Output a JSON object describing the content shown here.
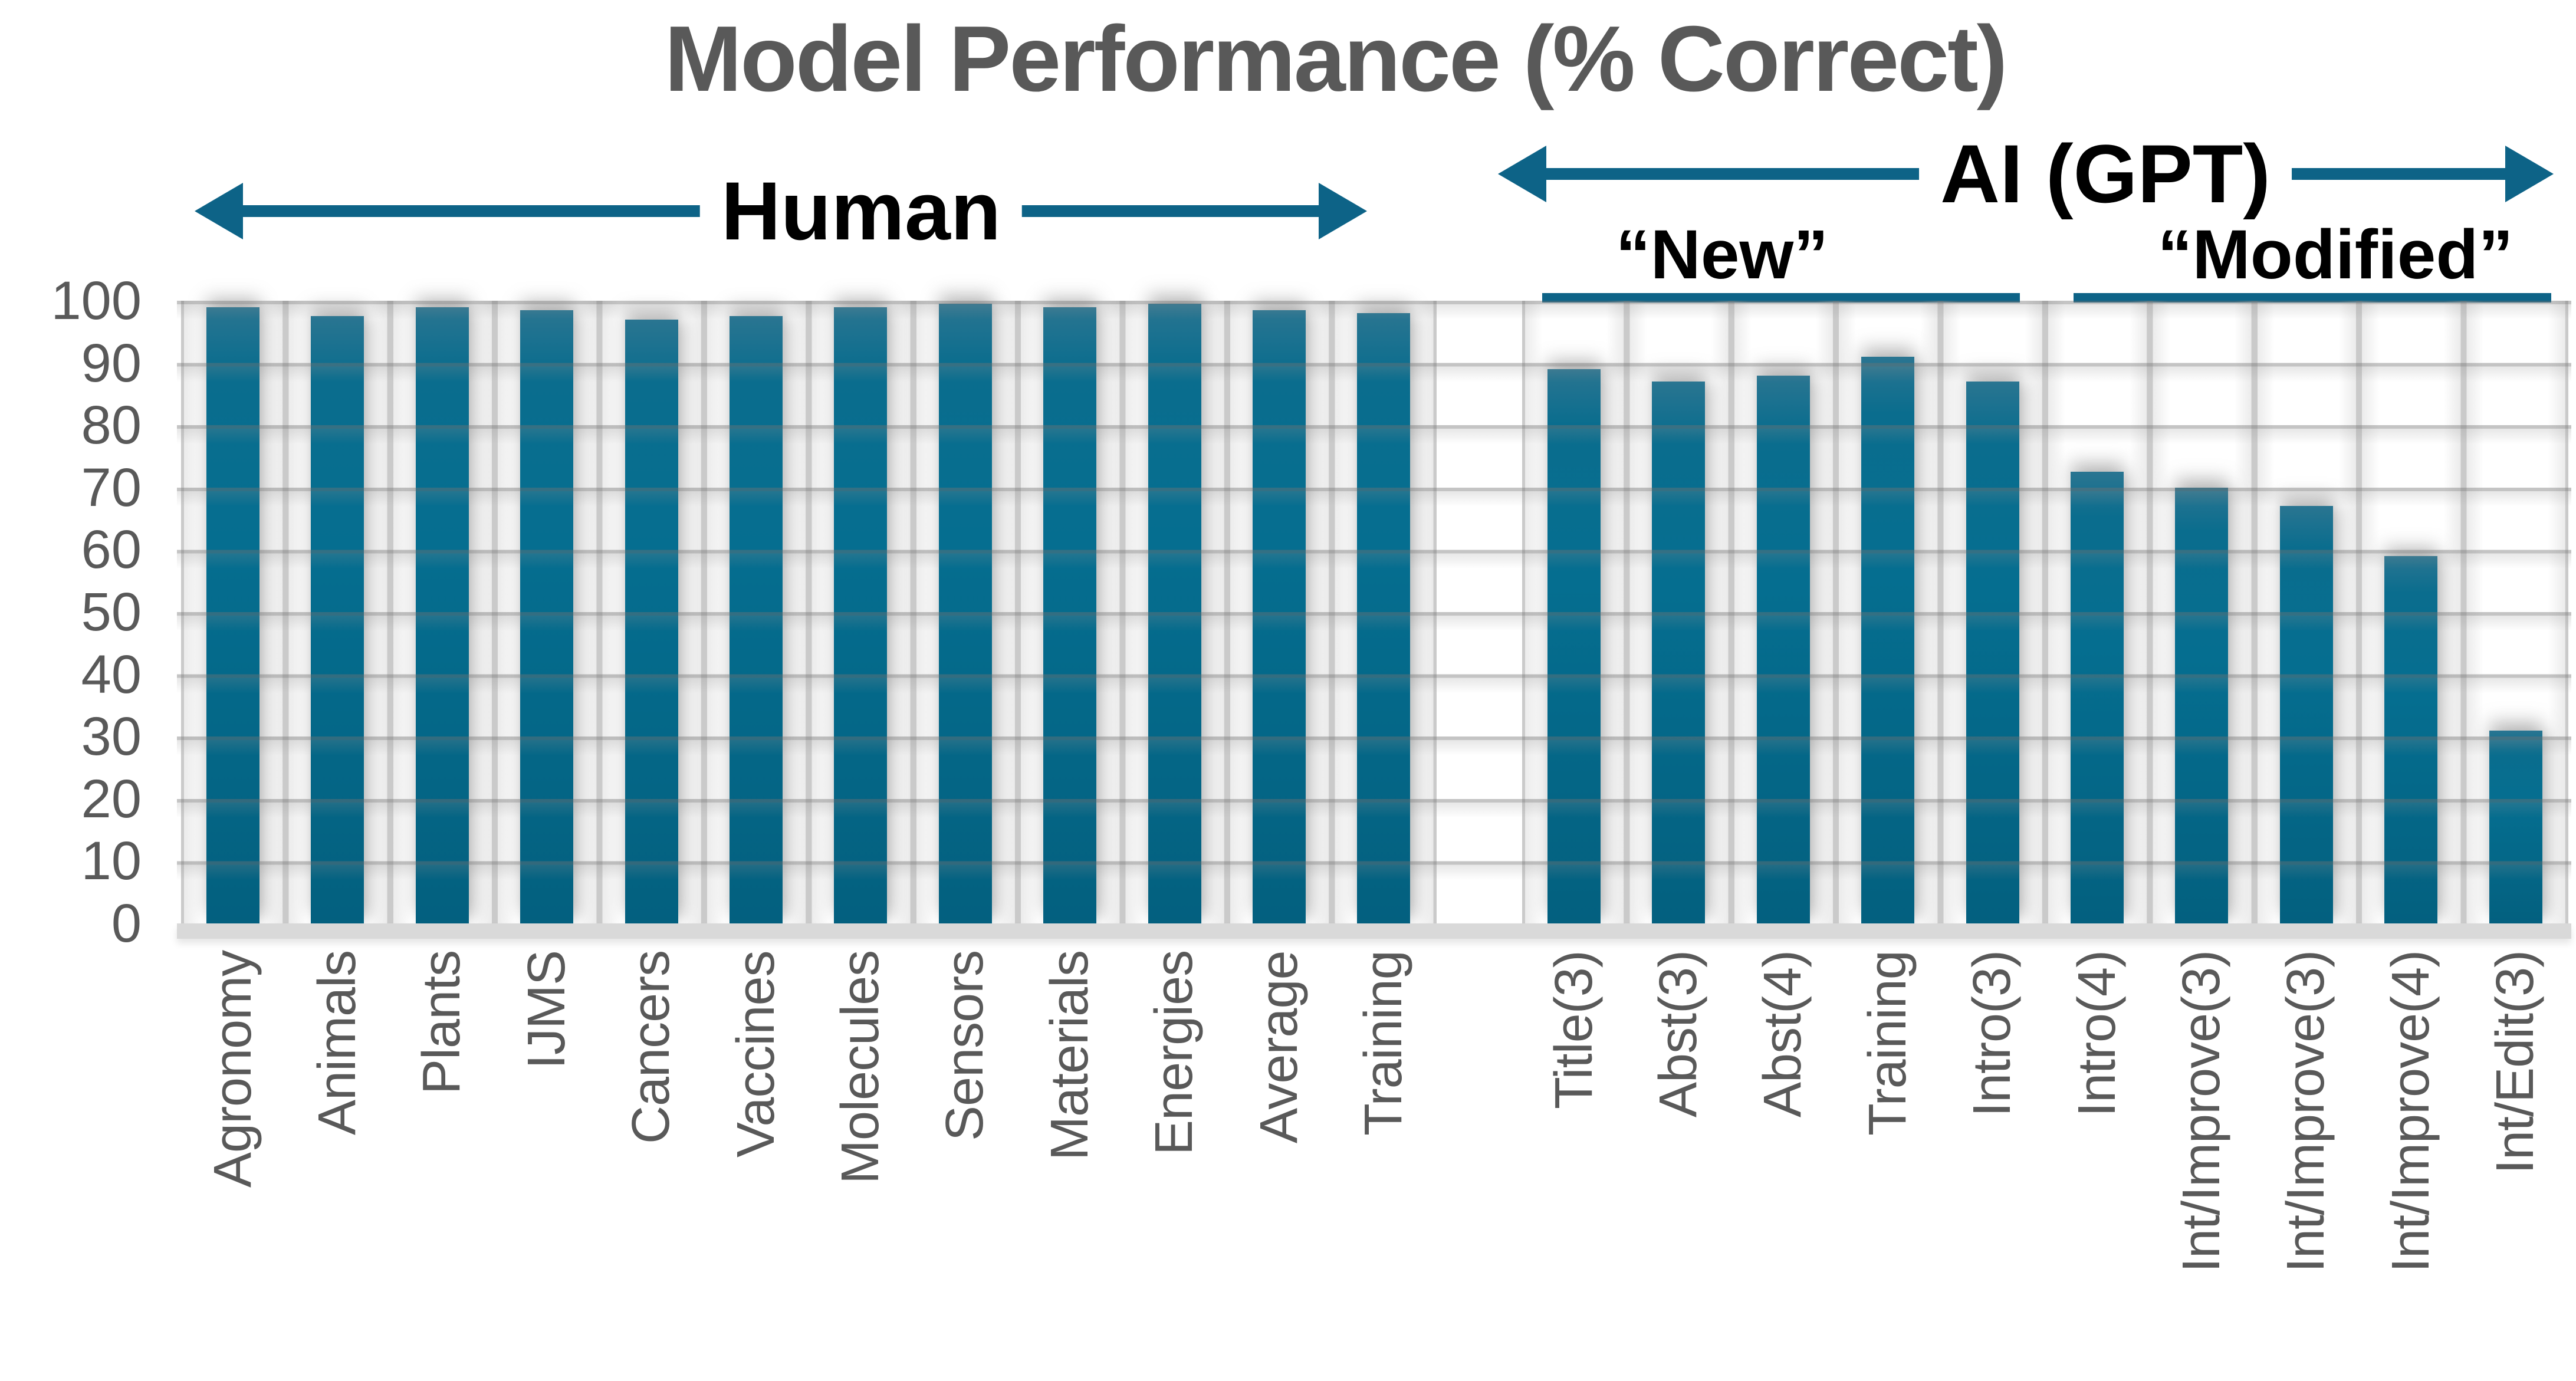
{
  "title": "Model Performance (% Correct)",
  "colors": {
    "accent_teal": "#0d6387",
    "bar_teal_top": "#2a7591",
    "bar_teal_bottom": "#03607f",
    "text_gray": "#595959",
    "gridline_gray": "#c9c9c9",
    "baseline_gray": "#d9d9d9"
  },
  "annotations": {
    "human_arrow_label": "Human",
    "ai_arrow_label": "AI (GPT)",
    "new_label": "“New”",
    "modified_label": "“Modified”"
  },
  "chart_data": {
    "type": "bar",
    "title": "Model Performance (% Correct)",
    "ylabel": "",
    "xlabel": "",
    "ylim": [
      0,
      100
    ],
    "yticks": [
      100,
      90,
      80,
      70,
      60,
      50,
      40,
      30,
      20,
      10,
      0
    ],
    "grid": true,
    "legend": "none",
    "groups": [
      {
        "name": "Human",
        "categories": [
          "Agronomy",
          "Animals",
          "Plants",
          "IJMS",
          "Cancers",
          "Vaccines",
          "Molecules",
          "Sensors",
          "Materials",
          "Energies",
          "Average",
          "Training"
        ],
        "values": [
          99,
          97.5,
          99,
          98.5,
          97,
          97.5,
          99,
          99.5,
          99,
          99.5,
          98.5,
          98
        ]
      },
      {
        "name": "AI (GPT)",
        "subgroups": [
          {
            "name": "“New”",
            "categories": [
              "Title(3)",
              "Abst(3)",
              "Abst(4)",
              "Training",
              "Intro(3)"
            ],
            "values": [
              89,
              87,
              88,
              91,
              87
            ]
          },
          {
            "name": "“Modified”",
            "categories": [
              "Intro(4)",
              "Int/Improve(3)",
              "Int/Improve(3)",
              "Int/Improve(4)",
              "Int/Edit(3)"
            ],
            "values": [
              72.5,
              70,
              67,
              59,
              31
            ]
          }
        ]
      }
    ]
  }
}
